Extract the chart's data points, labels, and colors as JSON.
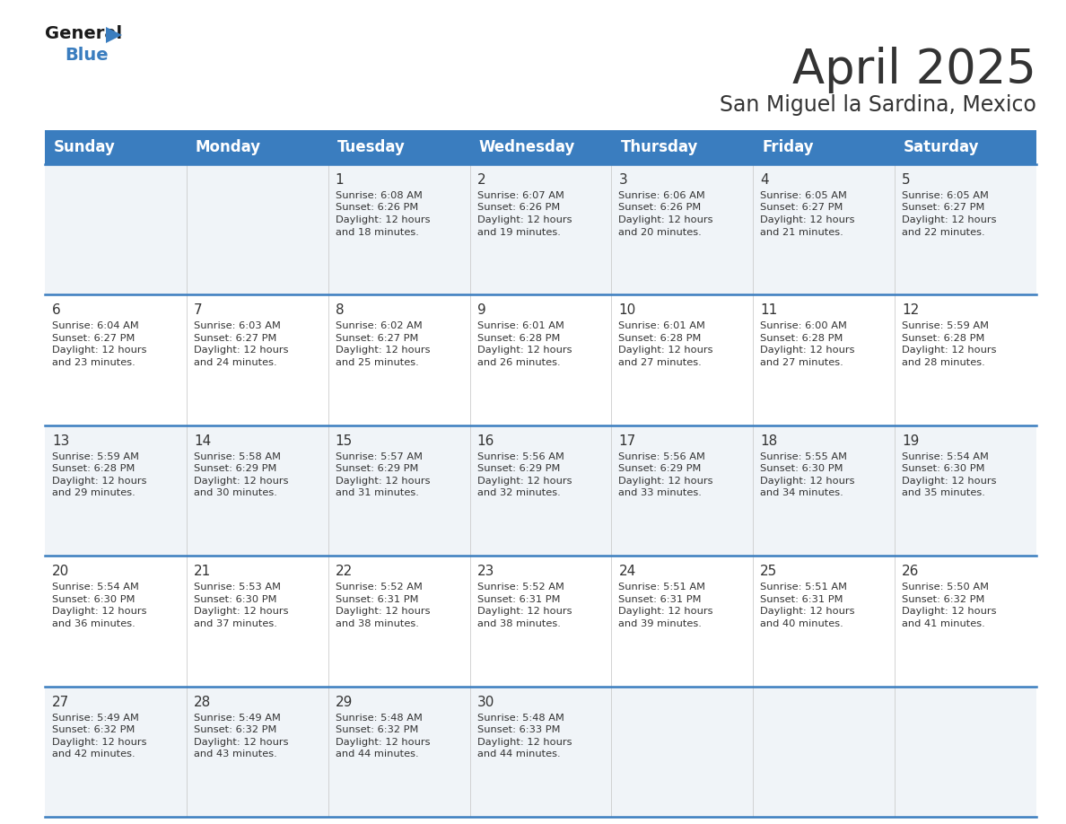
{
  "title": "April 2025",
  "subtitle": "San Miguel la Sardina, Mexico",
  "header_bg_color": "#3a7dbf",
  "header_text_color": "#ffffff",
  "cell_bg_light": "#f0f4f8",
  "cell_bg_white": "#ffffff",
  "day_names": [
    "Sunday",
    "Monday",
    "Tuesday",
    "Wednesday",
    "Thursday",
    "Friday",
    "Saturday"
  ],
  "title_fontsize": 38,
  "subtitle_fontsize": 17,
  "header_fontsize": 12,
  "day_num_fontsize": 11,
  "cell_fontsize": 8.2,
  "divider_color": "#3a7dbf",
  "divider_light": "#aaaaaa",
  "text_color": "#333333",
  "logo_general_color": "#1a1a1a",
  "logo_blue_color": "#3a7dbf",
  "logo_triangle_color": "#3a7dbf",
  "weeks": [
    [
      {
        "day": null,
        "sunrise": null,
        "sunset": null,
        "daylight": null
      },
      {
        "day": null,
        "sunrise": null,
        "sunset": null,
        "daylight": null
      },
      {
        "day": 1,
        "sunrise": "6:08 AM",
        "sunset": "6:26 PM",
        "daylight": "12 hours\nand 18 minutes."
      },
      {
        "day": 2,
        "sunrise": "6:07 AM",
        "sunset": "6:26 PM",
        "daylight": "12 hours\nand 19 minutes."
      },
      {
        "day": 3,
        "sunrise": "6:06 AM",
        "sunset": "6:26 PM",
        "daylight": "12 hours\nand 20 minutes."
      },
      {
        "day": 4,
        "sunrise": "6:05 AM",
        "sunset": "6:27 PM",
        "daylight": "12 hours\nand 21 minutes."
      },
      {
        "day": 5,
        "sunrise": "6:05 AM",
        "sunset": "6:27 PM",
        "daylight": "12 hours\nand 22 minutes."
      }
    ],
    [
      {
        "day": 6,
        "sunrise": "6:04 AM",
        "sunset": "6:27 PM",
        "daylight": "12 hours\nand 23 minutes."
      },
      {
        "day": 7,
        "sunrise": "6:03 AM",
        "sunset": "6:27 PM",
        "daylight": "12 hours\nand 24 minutes."
      },
      {
        "day": 8,
        "sunrise": "6:02 AM",
        "sunset": "6:27 PM",
        "daylight": "12 hours\nand 25 minutes."
      },
      {
        "day": 9,
        "sunrise": "6:01 AM",
        "sunset": "6:28 PM",
        "daylight": "12 hours\nand 26 minutes."
      },
      {
        "day": 10,
        "sunrise": "6:01 AM",
        "sunset": "6:28 PM",
        "daylight": "12 hours\nand 27 minutes."
      },
      {
        "day": 11,
        "sunrise": "6:00 AM",
        "sunset": "6:28 PM",
        "daylight": "12 hours\nand 27 minutes."
      },
      {
        "day": 12,
        "sunrise": "5:59 AM",
        "sunset": "6:28 PM",
        "daylight": "12 hours\nand 28 minutes."
      }
    ],
    [
      {
        "day": 13,
        "sunrise": "5:59 AM",
        "sunset": "6:28 PM",
        "daylight": "12 hours\nand 29 minutes."
      },
      {
        "day": 14,
        "sunrise": "5:58 AM",
        "sunset": "6:29 PM",
        "daylight": "12 hours\nand 30 minutes."
      },
      {
        "day": 15,
        "sunrise": "5:57 AM",
        "sunset": "6:29 PM",
        "daylight": "12 hours\nand 31 minutes."
      },
      {
        "day": 16,
        "sunrise": "5:56 AM",
        "sunset": "6:29 PM",
        "daylight": "12 hours\nand 32 minutes."
      },
      {
        "day": 17,
        "sunrise": "5:56 AM",
        "sunset": "6:29 PM",
        "daylight": "12 hours\nand 33 minutes."
      },
      {
        "day": 18,
        "sunrise": "5:55 AM",
        "sunset": "6:30 PM",
        "daylight": "12 hours\nand 34 minutes."
      },
      {
        "day": 19,
        "sunrise": "5:54 AM",
        "sunset": "6:30 PM",
        "daylight": "12 hours\nand 35 minutes."
      }
    ],
    [
      {
        "day": 20,
        "sunrise": "5:54 AM",
        "sunset": "6:30 PM",
        "daylight": "12 hours\nand 36 minutes."
      },
      {
        "day": 21,
        "sunrise": "5:53 AM",
        "sunset": "6:30 PM",
        "daylight": "12 hours\nand 37 minutes."
      },
      {
        "day": 22,
        "sunrise": "5:52 AM",
        "sunset": "6:31 PM",
        "daylight": "12 hours\nand 38 minutes."
      },
      {
        "day": 23,
        "sunrise": "5:52 AM",
        "sunset": "6:31 PM",
        "daylight": "12 hours\nand 38 minutes."
      },
      {
        "day": 24,
        "sunrise": "5:51 AM",
        "sunset": "6:31 PM",
        "daylight": "12 hours\nand 39 minutes."
      },
      {
        "day": 25,
        "sunrise": "5:51 AM",
        "sunset": "6:31 PM",
        "daylight": "12 hours\nand 40 minutes."
      },
      {
        "day": 26,
        "sunrise": "5:50 AM",
        "sunset": "6:32 PM",
        "daylight": "12 hours\nand 41 minutes."
      }
    ],
    [
      {
        "day": 27,
        "sunrise": "5:49 AM",
        "sunset": "6:32 PM",
        "daylight": "12 hours\nand 42 minutes."
      },
      {
        "day": 28,
        "sunrise": "5:49 AM",
        "sunset": "6:32 PM",
        "daylight": "12 hours\nand 43 minutes."
      },
      {
        "day": 29,
        "sunrise": "5:48 AM",
        "sunset": "6:32 PM",
        "daylight": "12 hours\nand 44 minutes."
      },
      {
        "day": 30,
        "sunrise": "5:48 AM",
        "sunset": "6:33 PM",
        "daylight": "12 hours\nand 44 minutes."
      },
      {
        "day": null,
        "sunrise": null,
        "sunset": null,
        "daylight": null
      },
      {
        "day": null,
        "sunrise": null,
        "sunset": null,
        "daylight": null
      },
      {
        "day": null,
        "sunrise": null,
        "sunset": null,
        "daylight": null
      }
    ]
  ]
}
